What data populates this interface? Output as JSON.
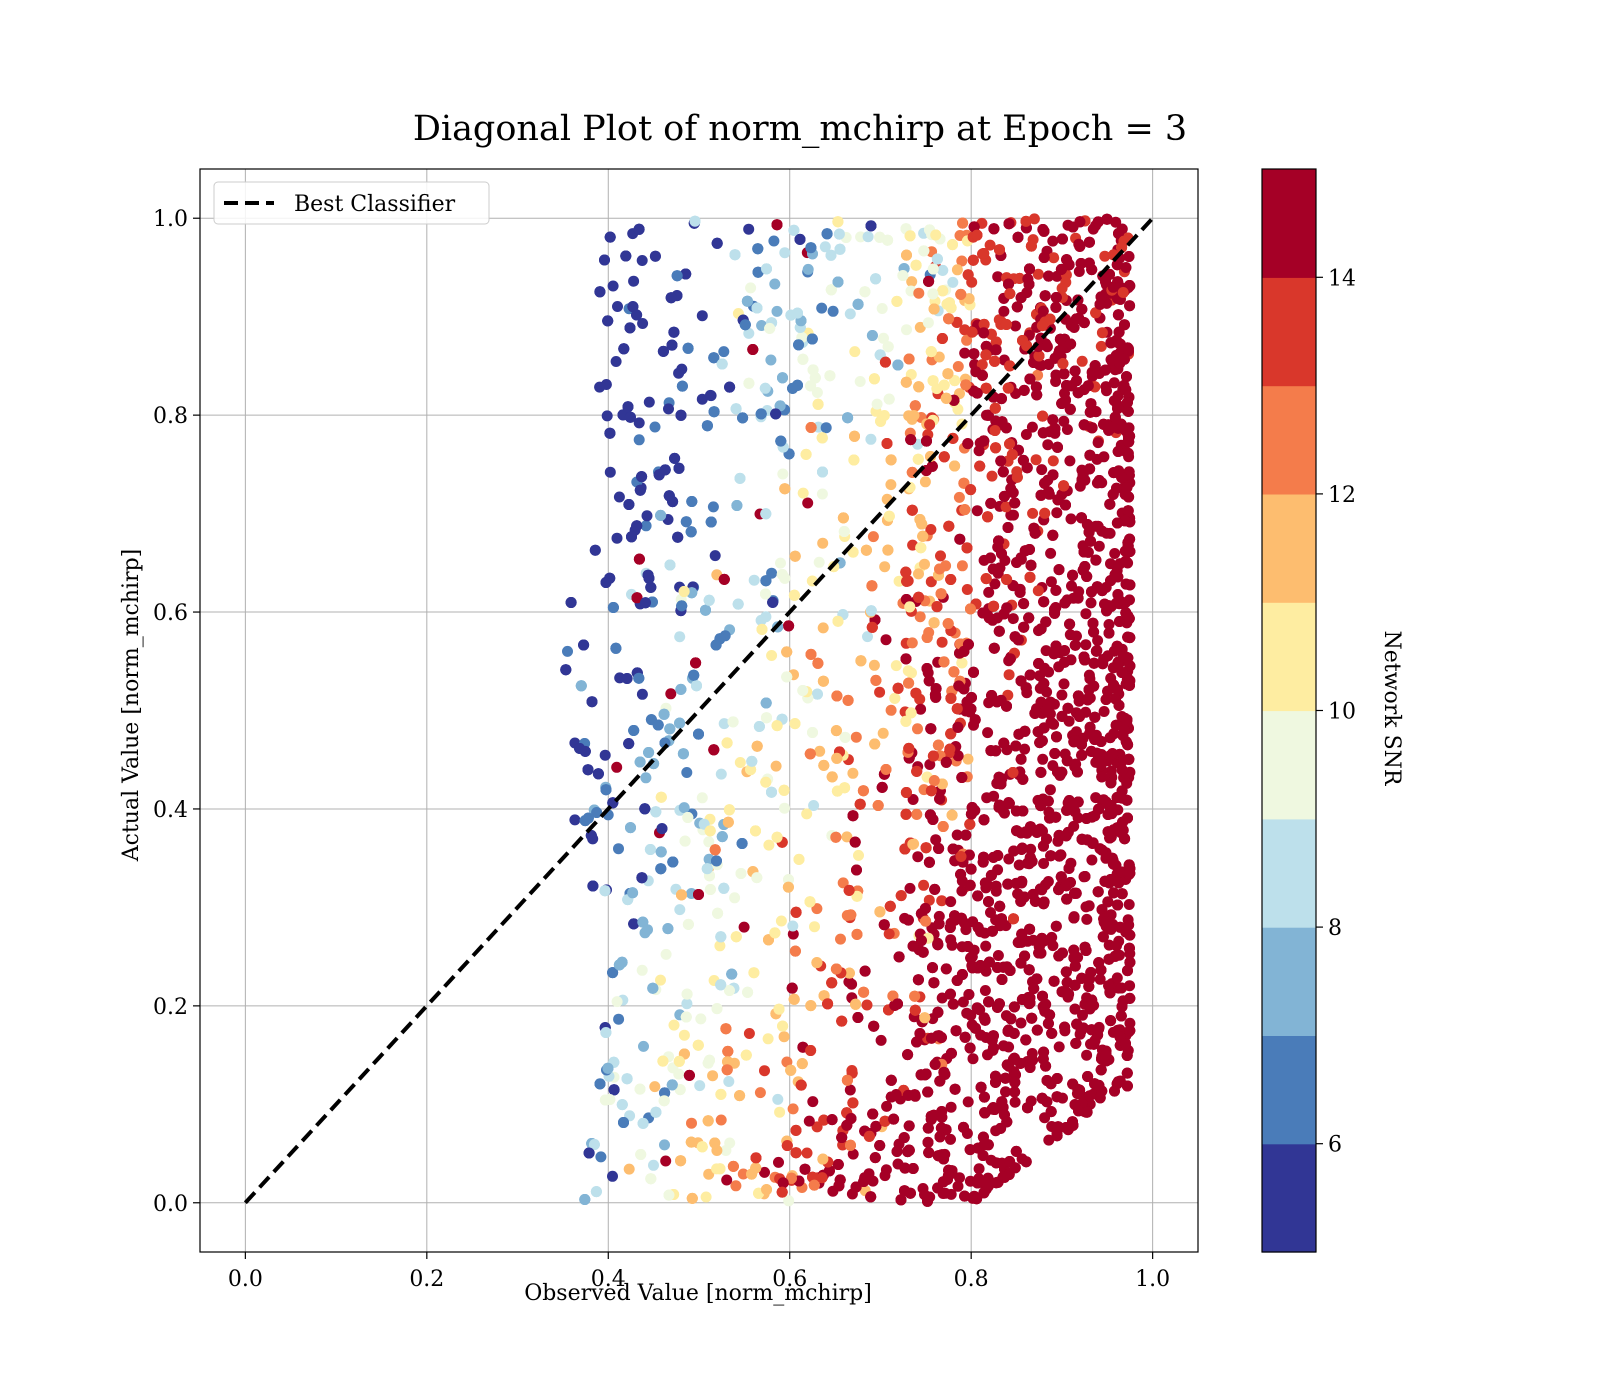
{
  "chart_data": {
    "type": "scatter",
    "title": "Diagonal Plot of norm_mchirp at Epoch = 3",
    "xlabel": "Observed Value [norm_mchirp]",
    "ylabel": "Actual Value [norm_mchirp]",
    "xlim": [
      -0.05,
      1.05
    ],
    "ylim": [
      -0.05,
      1.05
    ],
    "xticks": [
      0.0,
      0.2,
      0.4,
      0.6,
      0.8,
      1.0
    ],
    "xtick_labels": [
      "0.0",
      "0.2",
      "0.4",
      "0.6",
      "0.8",
      "1.0"
    ],
    "yticks": [
      0.0,
      0.2,
      0.4,
      0.6,
      0.8,
      1.0
    ],
    "ytick_labels": [
      "0.0",
      "0.2",
      "0.4",
      "0.6",
      "0.8",
      "1.0"
    ],
    "grid": true,
    "legend": {
      "placement": "upper-left",
      "entries": [
        "Best Classifier"
      ]
    },
    "reference_line": {
      "name": "Best Classifier",
      "style": "dashed",
      "color": "#000000",
      "points": [
        [
          0.0,
          0.0
        ],
        [
          1.0,
          1.0
        ]
      ]
    },
    "scatter_summary": {
      "x_range": [
        0.34,
        0.98
      ],
      "y_range": [
        0.0,
        1.0
      ],
      "colored_by": "Network SNR",
      "note": "dense scatter; color increases with x (low SNR near x=0.4, high SNR near x=1.0)"
    },
    "colorbar": {
      "label": "Network SNR",
      "range": [
        5,
        15
      ],
      "ticks": [
        6,
        8,
        10,
        12,
        14
      ],
      "tick_labels": [
        "6",
        "8",
        "10",
        "12",
        "14"
      ],
      "colors": [
        "#313695",
        "#4575b4",
        "#74add1",
        "#abd9e9",
        "#e0f3f8",
        "#fee090",
        "#fdae61",
        "#f46d43",
        "#d73027",
        "#a50026"
      ],
      "bin_colors_rendered": [
        "#313695",
        "#4a7cb9",
        "#82b4d5",
        "#bde0eb",
        "#eff8e0",
        "#feeda1",
        "#fdbd6f",
        "#f47c4b",
        "#d9372b",
        "#a50026"
      ]
    }
  }
}
